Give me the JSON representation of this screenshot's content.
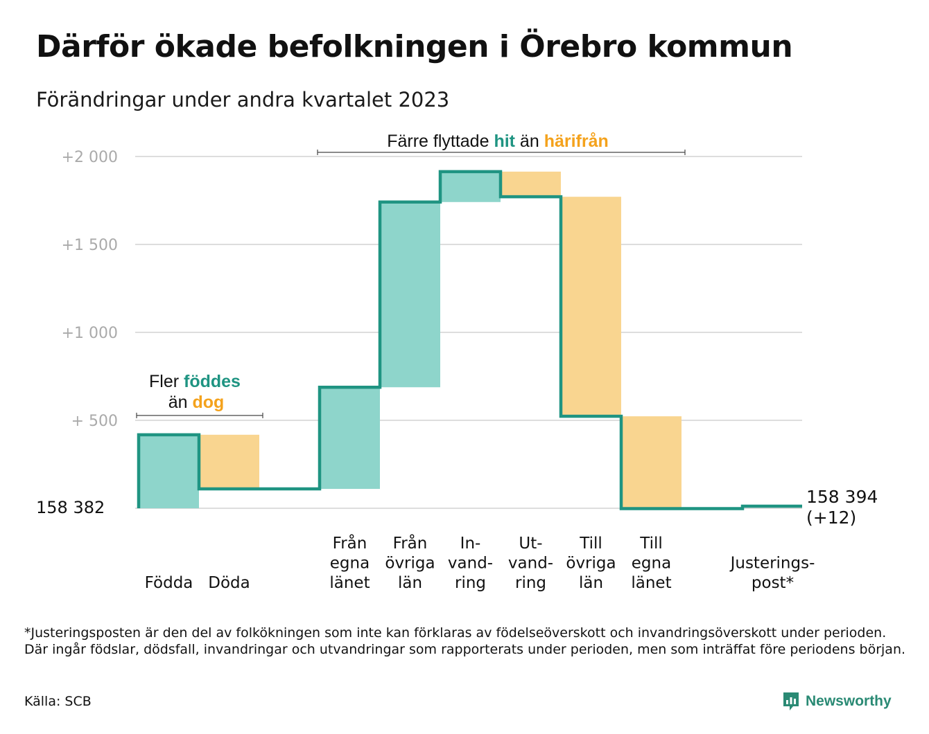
{
  "title": "Därför ökade befolkningen i Örebro kommun",
  "subtitle": "Förändringar under andra kvartalet 2023",
  "colors": {
    "increase": "#8ed5cb",
    "decrease": "#f9d590",
    "line": "#1f9482",
    "grid": "#dddddd",
    "tick_text": "#aaaaaa",
    "hl_green": "#1f9482",
    "hl_orange": "#f4a21c"
  },
  "chart_data": {
    "type": "bar",
    "subtype": "waterfall",
    "baseline": 158382,
    "baseline_label": "158  382",
    "end_label_line1": "158 394",
    "end_label_line2": "(+12)",
    "final_change": 12,
    "ylim": [
      0,
      2000
    ],
    "ytick_values": [
      0,
      500,
      1000,
      1500,
      2000
    ],
    "ytick_labels": [
      "",
      "+  500",
      "+1  000",
      "+1  500",
      "+2  000"
    ],
    "grid": true,
    "steps": [
      {
        "label": [
          "Födda"
        ],
        "value": 418,
        "kind": "increase"
      },
      {
        "label": [
          "Döda"
        ],
        "value": -308,
        "kind": "decrease"
      },
      {
        "label": [
          "Från",
          "egna",
          "länet"
        ],
        "value": 578,
        "kind": "increase"
      },
      {
        "label": [
          "Från",
          "övriga",
          "län"
        ],
        "value": 1053,
        "kind": "increase"
      },
      {
        "label": [
          "In-",
          "vand-",
          "ring"
        ],
        "value": 173,
        "kind": "increase"
      },
      {
        "label": [
          "Ut-",
          "vand-",
          "ring"
        ],
        "value": -143,
        "kind": "decrease"
      },
      {
        "label": [
          "Till",
          "övriga",
          "län"
        ],
        "value": -1248,
        "kind": "decrease"
      },
      {
        "label": [
          "Till",
          "egna",
          "länet"
        ],
        "value": -525,
        "kind": "decrease"
      },
      {
        "label": [
          "Justerings-",
          "post*"
        ],
        "value": 14,
        "kind": "adjustment"
      }
    ],
    "annotations": [
      {
        "id": "births",
        "line1": [
          {
            "text": "Fler ",
            "tone": "plain"
          },
          {
            "text": "föddes",
            "tone": "green"
          }
        ],
        "line2": [
          {
            "text": "än ",
            "tone": "plain"
          },
          {
            "text": "dog",
            "tone": "orange"
          }
        ]
      },
      {
        "id": "moves",
        "line1": [
          {
            "text": "Färre flyttade ",
            "tone": "plain"
          },
          {
            "text": "hit",
            "tone": "green"
          },
          {
            "text": "  än ",
            "tone": "plain"
          },
          {
            "text": "härifrån",
            "tone": "orange"
          }
        ]
      }
    ]
  },
  "footnote": "*Justeringsposten är den del av folkökningen som inte kan förklaras av födelseöverskott och invandringsöverskott under perioden. Där ingår födslar, dödsfall, invandringar och utvandringar som rapporterats under perioden, men som inträffat före periodens början.",
  "source": "Källa: SCB",
  "brand": {
    "name": "Newsworthy",
    "icon": "newsworthy-logo-icon"
  }
}
